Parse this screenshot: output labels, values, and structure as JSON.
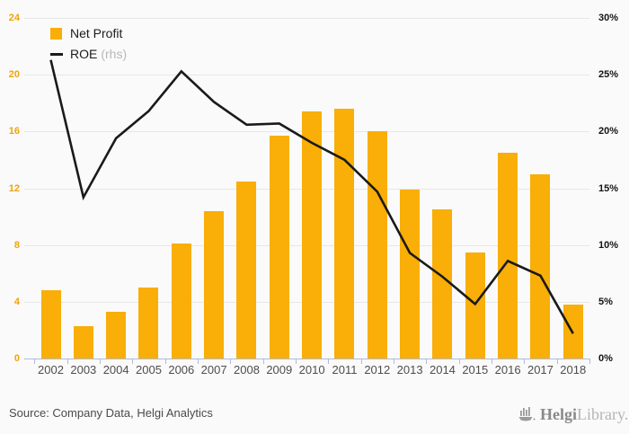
{
  "chart_data": {
    "type": "bar",
    "title": "",
    "categories": [
      "2002",
      "2003",
      "2004",
      "2005",
      "2006",
      "2007",
      "2008",
      "2009",
      "2010",
      "2011",
      "2012",
      "2013",
      "2014",
      "2015",
      "2016",
      "2017",
      "2018"
    ],
    "series": [
      {
        "name": "Net Profit",
        "chart": "bar",
        "axis": "left",
        "values": [
          4.8,
          2.3,
          3.3,
          5.0,
          8.1,
          10.4,
          12.5,
          15.7,
          17.4,
          17.6,
          16.0,
          11.9,
          10.5,
          7.5,
          14.5,
          13.0,
          3.8
        ]
      },
      {
        "name": "ROE",
        "chart": "line",
        "axis": "right",
        "unit": "%",
        "values": [
          26.3,
          14.2,
          19.4,
          21.8,
          25.3,
          22.6,
          20.6,
          20.7,
          19.0,
          17.5,
          14.7,
          9.3,
          7.2,
          4.8,
          8.6,
          7.3,
          2.2
        ]
      }
    ],
    "left_axis": {
      "min": 0,
      "max": 24,
      "tick_labels": [
        "0",
        "4",
        "8",
        "12",
        "16",
        "20",
        "24"
      ]
    },
    "right_axis": {
      "min": 0,
      "max": 30,
      "tick_labels": [
        "0%",
        "5%",
        "10%",
        "15%",
        "20%",
        "25%",
        "30%"
      ]
    },
    "grid": true,
    "legend_position": "top-left"
  },
  "legend": {
    "net_profit_label": "Net Profit",
    "roe_label": "ROE",
    "roe_suffix": "(rhs)"
  },
  "footer": {
    "source": "Source: Company Data, Helgi Analytics",
    "brand_primary": "Helgi",
    "brand_secondary": "Library."
  },
  "colors": {
    "bar": "#F9AE08",
    "line": "#1A1A1A",
    "left_axis_label": "#F0A30A",
    "right_axis_label": "#141414",
    "axis_line": "#AFBAE1",
    "gridline": "#E7E7E7",
    "year_label": "#4D4D4D",
    "background": "#FAFAFA"
  }
}
